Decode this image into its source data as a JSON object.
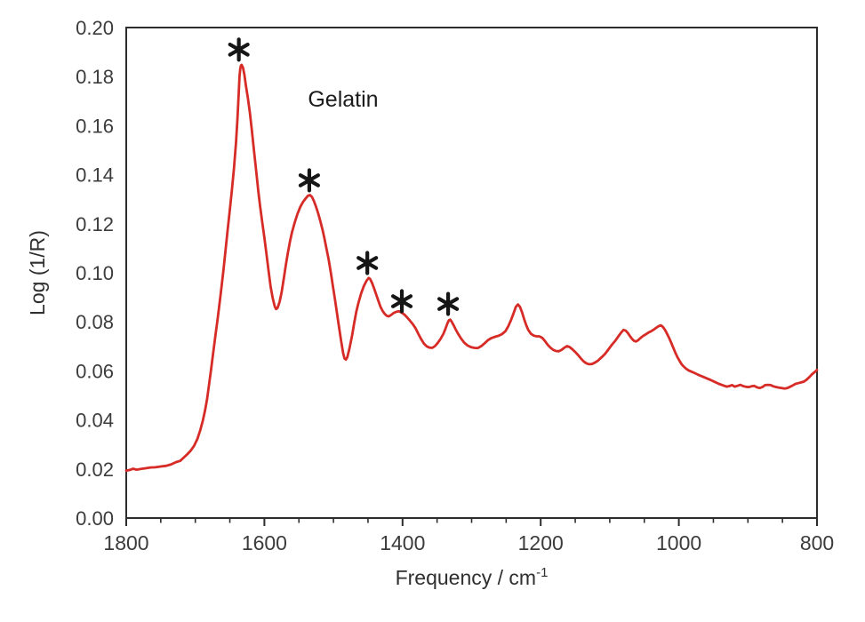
{
  "page": {
    "background_color": "#ffffff"
  },
  "chart_data": {
    "type": "line",
    "title": "",
    "series_label": "Gelatin",
    "xlabel": "Frequency / cm⁻¹",
    "xlabel_parts": {
      "base": "Frequency / cm",
      "superscript": "-1"
    },
    "ylabel": "Log (1/R)",
    "line_color": "#d62b26",
    "axis_color": "#2d2d2d",
    "marker_color": "#161616",
    "x_axis": {
      "min": 1800,
      "max": 800,
      "reversed": true,
      "major_tick_step": 200,
      "minor_tick_step": 50,
      "tick_values": [
        1800,
        1600,
        1400,
        1200,
        1000,
        800
      ],
      "tick_labels": [
        "1800",
        "1600",
        "1400",
        "1200",
        "1000",
        "800"
      ]
    },
    "y_axis": {
      "min": 0.0,
      "max": 0.2,
      "tick_step": 0.02,
      "tick_values": [
        0.2,
        0.18,
        0.16,
        0.14,
        0.12,
        0.1,
        0.08,
        0.06,
        0.04,
        0.02,
        0.0
      ],
      "tick_labels": [
        "0.20",
        "0.18",
        "0.16",
        "0.14",
        "0.12",
        "0.10",
        "0.08",
        "0.06",
        "0.04",
        "0.02",
        "0.00"
      ]
    },
    "grid": false,
    "legend": false,
    "annotation": {
      "text": "Gelatin",
      "f": 1486,
      "v": 0.171
    },
    "peak_markers": {
      "symbol": "*",
      "points": [
        {
          "f": 1637,
          "v": 0.191
        },
        {
          "f": 1535,
          "v": 0.1377
        },
        {
          "f": 1451,
          "v": 0.104
        },
        {
          "f": 1401,
          "v": 0.0884
        },
        {
          "f": 1334,
          "v": 0.0873
        }
      ]
    },
    "series": [
      {
        "name": "Gelatin",
        "points": [
          [
            1800,
            0.0193
          ],
          [
            1795,
            0.0196
          ],
          [
            1790,
            0.0201
          ],
          [
            1785,
            0.0197
          ],
          [
            1779,
            0.02
          ],
          [
            1772,
            0.0203
          ],
          [
            1765,
            0.0206
          ],
          [
            1758,
            0.0207
          ],
          [
            1750,
            0.021
          ],
          [
            1742,
            0.0213
          ],
          [
            1735,
            0.0219
          ],
          [
            1728,
            0.0228
          ],
          [
            1722,
            0.0233
          ],
          [
            1717,
            0.0246
          ],
          [
            1712,
            0.0259
          ],
          [
            1707,
            0.0274
          ],
          [
            1702,
            0.0293
          ],
          [
            1697,
            0.0322
          ],
          [
            1693,
            0.0356
          ],
          [
            1689,
            0.0398
          ],
          [
            1686,
            0.0438
          ],
          [
            1683,
            0.0484
          ],
          [
            1680,
            0.0545
          ],
          [
            1677,
            0.061
          ],
          [
            1674,
            0.0676
          ],
          [
            1671,
            0.0741
          ],
          [
            1668,
            0.0806
          ],
          [
            1665,
            0.0873
          ],
          [
            1662,
            0.0943
          ],
          [
            1659,
            0.1019
          ],
          [
            1656,
            0.1099
          ],
          [
            1653,
            0.1179
          ],
          [
            1650,
            0.1259
          ],
          [
            1647,
            0.1339
          ],
          [
            1644,
            0.1426
          ],
          [
            1641,
            0.1532
          ],
          [
            1639,
            0.1628
          ],
          [
            1637,
            0.1745
          ],
          [
            1636,
            0.18
          ],
          [
            1635,
            0.183
          ],
          [
            1634,
            0.1845
          ],
          [
            1633,
            0.1848
          ],
          [
            1631,
            0.1837
          ],
          [
            1629,
            0.1808
          ],
          [
            1627,
            0.1768
          ],
          [
            1624,
            0.1713
          ],
          [
            1621,
            0.1652
          ],
          [
            1618,
            0.1578
          ],
          [
            1615,
            0.1498
          ],
          [
            1612,
            0.1418
          ],
          [
            1609,
            0.1338
          ],
          [
            1606,
            0.1268
          ],
          [
            1603,
            0.1203
          ],
          [
            1600,
            0.1143
          ],
          [
            1597,
            0.1078
          ],
          [
            1594,
            0.1008
          ],
          [
            1591,
            0.0944
          ],
          [
            1588,
            0.0898
          ],
          [
            1585,
            0.0862
          ],
          [
            1583,
            0.0852
          ],
          [
            1581,
            0.0857
          ],
          [
            1578,
            0.0881
          ],
          [
            1575,
            0.0921
          ],
          [
            1572,
            0.0976
          ],
          [
            1569,
            0.1031
          ],
          [
            1566,
            0.1081
          ],
          [
            1563,
            0.1126
          ],
          [
            1560,
            0.1166
          ],
          [
            1556,
            0.1206
          ],
          [
            1552,
            0.1241
          ],
          [
            1548,
            0.1269
          ],
          [
            1544,
            0.1289
          ],
          [
            1540,
            0.1304
          ],
          [
            1537,
            0.1314
          ],
          [
            1534,
            0.1317
          ],
          [
            1531,
            0.1309
          ],
          [
            1528,
            0.1291
          ],
          [
            1525,
            0.1267
          ],
          [
            1522,
            0.1241
          ],
          [
            1519,
            0.1211
          ],
          [
            1516,
            0.1177
          ],
          [
            1513,
            0.1139
          ],
          [
            1510,
            0.1097
          ],
          [
            1507,
            0.1054
          ],
          [
            1504,
            0.1004
          ],
          [
            1501,
            0.0949
          ],
          [
            1498,
            0.0894
          ],
          [
            1495,
            0.0837
          ],
          [
            1492,
            0.078
          ],
          [
            1489,
            0.0725
          ],
          [
            1486,
            0.0672
          ],
          [
            1484,
            0.0651
          ],
          [
            1482,
            0.0646
          ],
          [
            1480,
            0.0655
          ],
          [
            1477,
            0.069
          ],
          [
            1473,
            0.0745
          ],
          [
            1470,
            0.0795
          ],
          [
            1467,
            0.084
          ],
          [
            1464,
            0.0876
          ],
          [
            1460,
            0.0916
          ],
          [
            1456,
            0.0946
          ],
          [
            1452,
            0.0968
          ],
          [
            1449,
            0.0979
          ],
          [
            1447,
            0.0975
          ],
          [
            1444,
            0.0958
          ],
          [
            1441,
            0.0935
          ],
          [
            1438,
            0.091
          ],
          [
            1435,
            0.0886
          ],
          [
            1432,
            0.0862
          ],
          [
            1429,
            0.0845
          ],
          [
            1426,
            0.0833
          ],
          [
            1423,
            0.0825
          ],
          [
            1420,
            0.0822
          ],
          [
            1417,
            0.0827
          ],
          [
            1413,
            0.0836
          ],
          [
            1409,
            0.0841
          ],
          [
            1405,
            0.0843
          ],
          [
            1401,
            0.0837
          ],
          [
            1397,
            0.0829
          ],
          [
            1393,
            0.0817
          ],
          [
            1389,
            0.0804
          ],
          [
            1385,
            0.079
          ],
          [
            1381,
            0.0773
          ],
          [
            1377,
            0.075
          ],
          [
            1373,
            0.0729
          ],
          [
            1369,
            0.0711
          ],
          [
            1365,
            0.07
          ],
          [
            1361,
            0.0695
          ],
          [
            1357,
            0.0694
          ],
          [
            1353,
            0.0701
          ],
          [
            1349,
            0.0714
          ],
          [
            1345,
            0.073
          ],
          [
            1341,
            0.075
          ],
          [
            1338,
            0.0771
          ],
          [
            1335,
            0.0794
          ],
          [
            1333,
            0.0806
          ],
          [
            1331,
            0.0809
          ],
          [
            1329,
            0.0801
          ],
          [
            1326,
            0.0786
          ],
          [
            1323,
            0.0769
          ],
          [
            1319,
            0.0749
          ],
          [
            1315,
            0.0731
          ],
          [
            1311,
            0.0716
          ],
          [
            1306,
            0.0704
          ],
          [
            1301,
            0.0697
          ],
          [
            1296,
            0.0694
          ],
          [
            1291,
            0.0693
          ],
          [
            1286,
            0.0701
          ],
          [
            1281,
            0.0713
          ],
          [
            1276,
            0.0726
          ],
          [
            1271,
            0.0734
          ],
          [
            1266,
            0.0739
          ],
          [
            1261,
            0.0743
          ],
          [
            1256,
            0.075
          ],
          [
            1251,
            0.0762
          ],
          [
            1247,
            0.0782
          ],
          [
            1243,
            0.0807
          ],
          [
            1239,
            0.0837
          ],
          [
            1236,
            0.0861
          ],
          [
            1233,
            0.0871
          ],
          [
            1230,
            0.0861
          ],
          [
            1227,
            0.0839
          ],
          [
            1224,
            0.0811
          ],
          [
            1221,
            0.0787
          ],
          [
            1218,
            0.0767
          ],
          [
            1214,
            0.0751
          ],
          [
            1210,
            0.0744
          ],
          [
            1206,
            0.0741
          ],
          [
            1202,
            0.0741
          ],
          [
            1198,
            0.0735
          ],
          [
            1194,
            0.0722
          ],
          [
            1190,
            0.0707
          ],
          [
            1186,
            0.0695
          ],
          [
            1182,
            0.0686
          ],
          [
            1178,
            0.0681
          ],
          [
            1174,
            0.068
          ],
          [
            1170,
            0.0685
          ],
          [
            1166,
            0.0694
          ],
          [
            1162,
            0.0701
          ],
          [
            1158,
            0.0697
          ],
          [
            1154,
            0.0688
          ],
          [
            1150,
            0.0677
          ],
          [
            1146,
            0.0665
          ],
          [
            1142,
            0.0651
          ],
          [
            1138,
            0.0639
          ],
          [
            1134,
            0.0631
          ],
          [
            1130,
            0.0627
          ],
          [
            1126,
            0.0628
          ],
          [
            1122,
            0.0633
          ],
          [
            1117,
            0.0642
          ],
          [
            1112,
            0.0655
          ],
          [
            1107,
            0.0669
          ],
          [
            1102,
            0.0687
          ],
          [
            1097,
            0.0706
          ],
          [
            1092,
            0.0723
          ],
          [
            1087,
            0.0743
          ],
          [
            1083,
            0.0758
          ],
          [
            1080,
            0.0767
          ],
          [
            1077,
            0.0764
          ],
          [
            1074,
            0.0755
          ],
          [
            1071,
            0.0743
          ],
          [
            1068,
            0.0731
          ],
          [
            1065,
            0.0723
          ],
          [
            1062,
            0.072
          ],
          [
            1059,
            0.0725
          ],
          [
            1056,
            0.0733
          ],
          [
            1052,
            0.0742
          ],
          [
            1048,
            0.0749
          ],
          [
            1044,
            0.0756
          ],
          [
            1040,
            0.0762
          ],
          [
            1036,
            0.0769
          ],
          [
            1032,
            0.0777
          ],
          [
            1029,
            0.0783
          ],
          [
            1026,
            0.0786
          ],
          [
            1023,
            0.0779
          ],
          [
            1020,
            0.0767
          ],
          [
            1017,
            0.0751
          ],
          [
            1014,
            0.0734
          ],
          [
            1011,
            0.0714
          ],
          [
            1008,
            0.0694
          ],
          [
            1005,
            0.0674
          ],
          [
            1002,
            0.0656
          ],
          [
            999,
            0.0641
          ],
          [
            996,
            0.0627
          ],
          [
            993,
            0.0618
          ],
          [
            990,
            0.061
          ],
          [
            986,
            0.0602
          ],
          [
            982,
            0.0597
          ],
          [
            977,
            0.0591
          ],
          [
            972,
            0.0584
          ],
          [
            966,
            0.0577
          ],
          [
            960,
            0.057
          ],
          [
            954,
            0.0563
          ],
          [
            948,
            0.0555
          ],
          [
            942,
            0.0547
          ],
          [
            936,
            0.0541
          ],
          [
            931,
            0.0536
          ],
          [
            927,
            0.0538
          ],
          [
            923,
            0.0542
          ],
          [
            919,
            0.0536
          ],
          [
            915,
            0.0539
          ],
          [
            911,
            0.0543
          ],
          [
            907,
            0.0538
          ],
          [
            903,
            0.0535
          ],
          [
            899,
            0.0534
          ],
          [
            895,
            0.0537
          ],
          [
            891,
            0.0539
          ],
          [
            887,
            0.0533
          ],
          [
            883,
            0.053
          ],
          [
            879,
            0.0534
          ],
          [
            875,
            0.0542
          ],
          [
            871,
            0.0543
          ],
          [
            867,
            0.0542
          ],
          [
            863,
            0.0537
          ],
          [
            859,
            0.0534
          ],
          [
            855,
            0.0532
          ],
          [
            851,
            0.053
          ],
          [
            847,
            0.0528
          ],
          [
            843,
            0.053
          ],
          [
            839,
            0.0535
          ],
          [
            835,
            0.0541
          ],
          [
            831,
            0.0547
          ],
          [
            827,
            0.055
          ],
          [
            823,
            0.0553
          ],
          [
            819,
            0.0556
          ],
          [
            815,
            0.0564
          ],
          [
            811,
            0.0575
          ],
          [
            807,
            0.0587
          ],
          [
            803,
            0.0596
          ],
          [
            800,
            0.0604
          ]
        ]
      }
    ]
  }
}
